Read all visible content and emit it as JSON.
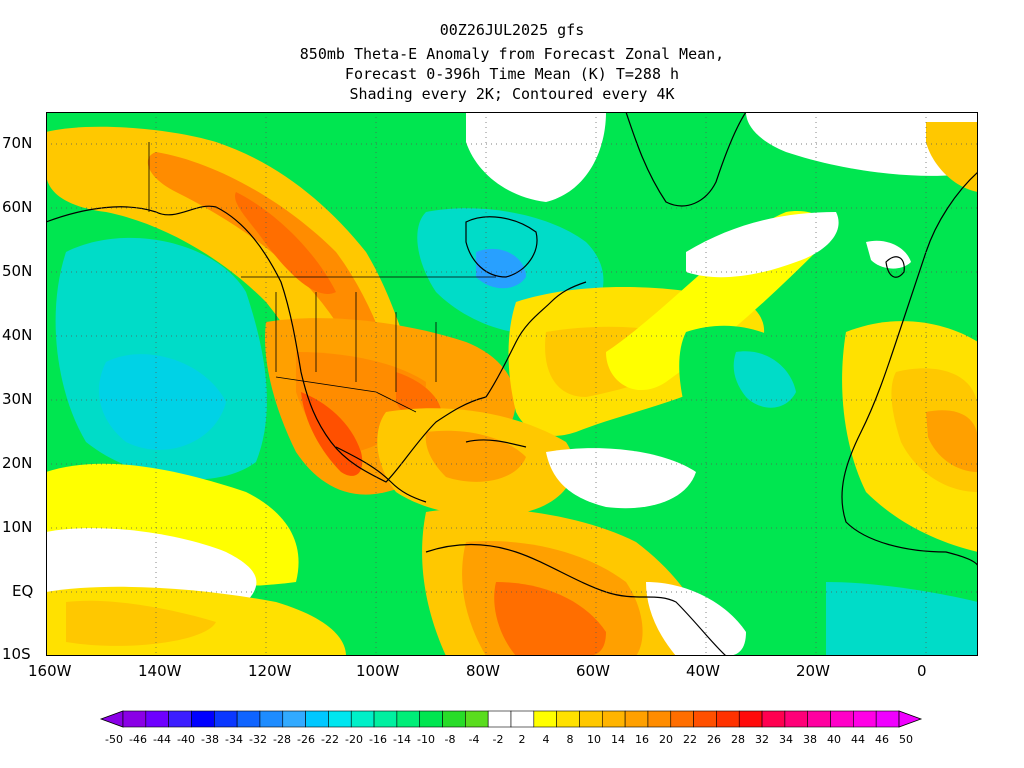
{
  "title": {
    "line1": "00Z26JUL2025 gfs",
    "line2": "850mb Theta-E Anomaly from Forecast Zonal Mean,",
    "line3": "Forecast 0-396h Time Mean (K) T=288 h",
    "line4": "Shading every 2K; Contoured every 4K"
  },
  "axes": {
    "lat_labels": [
      "70N",
      "60N",
      "50N",
      "40N",
      "30N",
      "20N",
      "10N",
      "EQ",
      "10S"
    ],
    "lon_labels": [
      "160W",
      "140W",
      "120W",
      "100W",
      "80W",
      "60W",
      "40W",
      "20W",
      "0"
    ]
  },
  "colorbar": {
    "labels": [
      "-50",
      "-46",
      "-44",
      "-40",
      "-38",
      "-34",
      "-32",
      "-28",
      "-26",
      "-22",
      "-20",
      "-16",
      "-14",
      "-10",
      "-8",
      "-4",
      "-2",
      "2",
      "4",
      "8",
      "10",
      "14",
      "16",
      "20",
      "22",
      "26",
      "28",
      "32",
      "34",
      "38",
      "40",
      "44",
      "46",
      "50"
    ],
    "colors": [
      "#8a00e6",
      "#6e00ff",
      "#3c1eff",
      "#0000ff",
      "#0a37ff",
      "#0f64ff",
      "#1e8cff",
      "#32aaff",
      "#00c8ff",
      "#00e6f0",
      "#00f0c8",
      "#00f0a0",
      "#00ee78",
      "#00e650",
      "#28dc28",
      "#5adc1e",
      "#ffffff",
      "#ffffff",
      "#ffff00",
      "#ffe100",
      "#ffc800",
      "#ffb400",
      "#ffa000",
      "#ff8c00",
      "#ff6e00",
      "#ff5000",
      "#ff3200",
      "#ff0a0a",
      "#ff0050",
      "#ff0078",
      "#ff00a0",
      "#ff00c8",
      "#ff00e6",
      "#f000ff"
    ]
  },
  "colors": {
    "cold": "#00dcc8",
    "cool": "#00e650",
    "neutral": "#ffffff",
    "warm": "#ffe100",
    "hot": "#ff8c00",
    "very_hot": "#ff5000"
  }
}
